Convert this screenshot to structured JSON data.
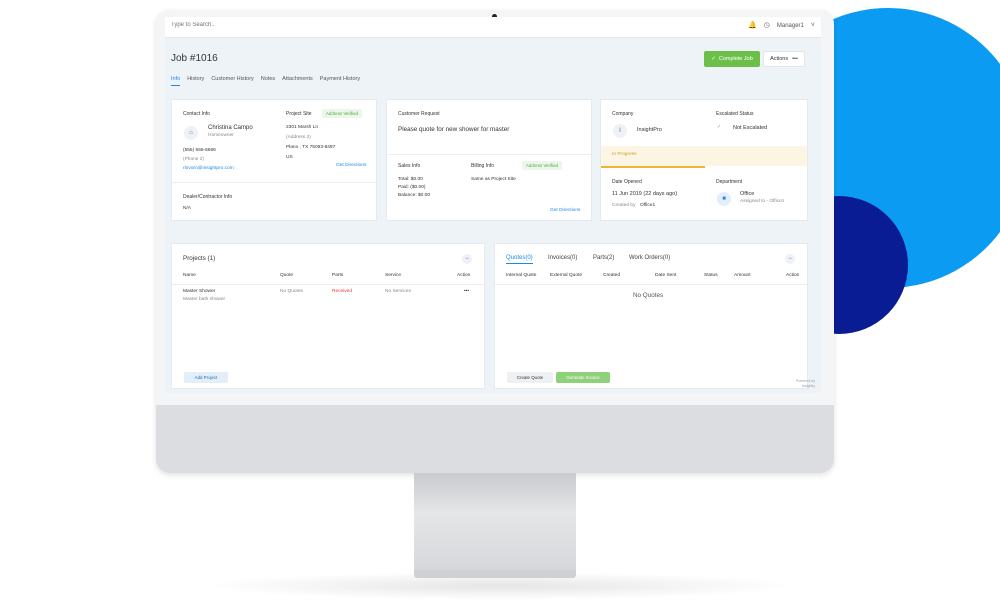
{
  "colors": {
    "accent": "#1e88e5",
    "success": "#6cc04a",
    "circle_large": "#0b9bf2",
    "circle_small": "#0a1c94",
    "warning": "#f0b43c",
    "danger": "#e53935"
  },
  "topbar": {
    "search_placeholder": "Type to Search..",
    "user": "Manager1",
    "icons": [
      "bell-icon",
      "clock-icon",
      "chevron-down-icon"
    ]
  },
  "header": {
    "title": "Job #1016",
    "complete_label": "Complete Job",
    "actions_label": "Actions",
    "actions_more": "•••"
  },
  "tabs": [
    {
      "label": "Info",
      "active": true
    },
    {
      "label": "History"
    },
    {
      "label": "Customer History"
    },
    {
      "label": "Notes"
    },
    {
      "label": "Attachments"
    },
    {
      "label": "Payment History"
    }
  ],
  "contact": {
    "section_label": "Contact Info",
    "name": "Christina Campo",
    "role": "Homeowner",
    "phone": "(555) 555-6666",
    "phone2": "(Phone 2)",
    "email": "rlovorn@insightpro.com",
    "project_site_label": "Project Site",
    "address_verified": "Address Verified",
    "address1": "2301 Marsh Ln",
    "address2": "(Address 2)",
    "city": "Plano , TX 75093-8497",
    "country": "US",
    "directions": "Get Directions",
    "dealer_label": "Dealer/Contractor Info",
    "dealer_value": "N/A"
  },
  "request": {
    "label": "Customer Request",
    "text": "Please quote for new shower for master",
    "sales_label": "Sales Info",
    "total": "Total: $0.00",
    "paid": "Paid: ($0.00)",
    "balance": "Balance: $0.00",
    "billing_label": "Billing Info",
    "billing_verified": "Address Verified",
    "billing_value": "Same as Project Site",
    "directions": "Get Directions"
  },
  "company": {
    "label": "Company",
    "initial": "I",
    "name": "InsightPro",
    "escalated_label": "Escalated Status",
    "escalated_value": "Not Escalated",
    "status": "In Progress",
    "date_label": "Date Opened",
    "date_value": "11 Jun 2019 (22 days ago)",
    "created_by_prefix": "Created by",
    "created_by": "Office1",
    "department_label": "Department",
    "department_value": "Office",
    "assigned": "Assigned to - Office1"
  },
  "projects": {
    "title": "Projects (1)",
    "columns": [
      "Name",
      "Quote",
      "Parts",
      "Service",
      "Action"
    ],
    "row": {
      "name": "Master Shower",
      "sub": "Master bath shower",
      "quote": "No Quotes",
      "parts": "Received",
      "service": "No Services",
      "action": "•••"
    },
    "add_label": "Add Project"
  },
  "quotes": {
    "tabs": [
      "Quotes(0)",
      "Invoices(0)",
      "Parts(2)",
      "Work Orders(0)"
    ],
    "columns": [
      "Internal Quote",
      "External Quote",
      "Created",
      "Date Sent",
      "Status",
      "Amount",
      "Action"
    ],
    "empty": "No Quotes",
    "create_label": "Create Quote",
    "invoice_label": "Generate Invoice"
  },
  "footer": {
    "powered1": "Powered by",
    "powered2": "Insightly"
  }
}
